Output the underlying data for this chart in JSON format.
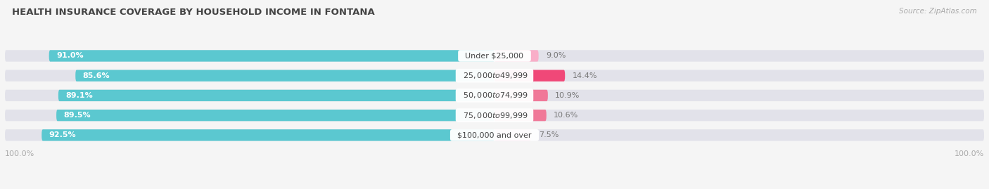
{
  "title": "HEALTH INSURANCE COVERAGE BY HOUSEHOLD INCOME IN FONTANA",
  "source": "Source: ZipAtlas.com",
  "categories": [
    "Under $25,000",
    "$25,000 to $49,999",
    "$50,000 to $74,999",
    "$75,000 to $99,999",
    "$100,000 and over"
  ],
  "with_coverage": [
    91.0,
    85.6,
    89.1,
    89.5,
    92.5
  ],
  "without_coverage": [
    9.0,
    14.4,
    10.9,
    10.6,
    7.5
  ],
  "color_with": "#5bc8d0",
  "colors_without": [
    "#f9aec8",
    "#f04878",
    "#f07898",
    "#f07898",
    "#f9b8d0"
  ],
  "bg_color": "#f5f5f5",
  "bar_bg_color": "#e2e2ea",
  "label_color_with": "#ffffff",
  "label_color_pct": "#777777",
  "label_color_cat": "#444444",
  "tick_label_color": "#aaaaaa",
  "legend_color_with": "#5bc8d0",
  "legend_color_without": "#f04878",
  "title_color": "#444444",
  "source_color": "#aaaaaa"
}
